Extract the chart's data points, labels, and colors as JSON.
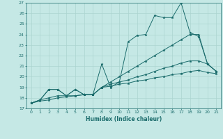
{
  "xlabel": "Humidex (Indice chaleur)",
  "background_color": "#c5e8e5",
  "grid_color": "#acd4d0",
  "line_color": "#1a6b6b",
  "xlim": [
    -0.5,
    21.5
  ],
  "ylim": [
    17,
    27
  ],
  "xticks": [
    0,
    1,
    2,
    3,
    4,
    5,
    6,
    7,
    8,
    9,
    10,
    11,
    12,
    13,
    14,
    15,
    16,
    17,
    18,
    19,
    20,
    21
  ],
  "yticks": [
    17,
    18,
    19,
    20,
    21,
    22,
    23,
    24,
    25,
    26,
    27
  ],
  "s1": [
    17.5,
    17.8,
    18.8,
    18.8,
    18.2,
    18.8,
    18.3,
    18.3,
    21.2,
    19.0,
    19.5,
    23.3,
    23.9,
    24.0,
    25.8,
    25.6,
    25.6,
    27.0,
    24.2,
    23.8,
    21.2,
    20.5
  ],
  "s2": [
    17.5,
    17.8,
    18.8,
    18.8,
    18.2,
    18.8,
    18.3,
    18.3,
    19.0,
    19.5,
    20.0,
    20.5,
    21.0,
    21.5,
    22.0,
    22.5,
    23.0,
    23.5,
    24.0,
    24.0,
    21.2,
    20.5
  ],
  "s3": [
    17.5,
    17.8,
    18.0,
    18.2,
    18.2,
    18.2,
    18.3,
    18.3,
    19.0,
    19.3,
    19.5,
    19.7,
    20.0,
    20.2,
    20.5,
    20.8,
    21.0,
    21.3,
    21.5,
    21.5,
    21.2,
    20.5
  ],
  "s4": [
    17.5,
    17.7,
    17.8,
    18.0,
    18.1,
    18.2,
    18.3,
    18.3,
    19.0,
    19.1,
    19.3,
    19.4,
    19.6,
    19.7,
    19.9,
    20.0,
    20.2,
    20.3,
    20.5,
    20.6,
    20.4,
    20.3
  ]
}
